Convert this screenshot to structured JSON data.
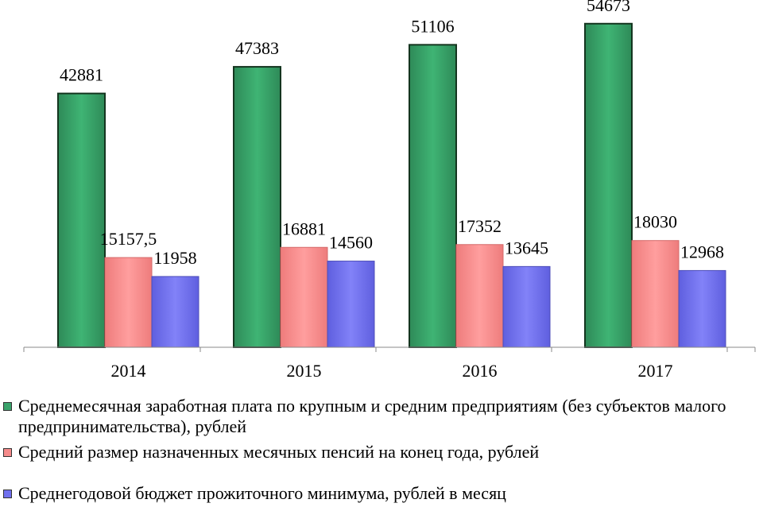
{
  "chart_data": {
    "type": "bar",
    "categories": [
      "2014",
      "2015",
      "2016",
      "2017"
    ],
    "series": [
      {
        "name": "Среднемесячная заработная плата по крупным и средним предприятиям (без субъектов малого предпринимательства), рублей",
        "values": [
          42881,
          47383,
          51106,
          54673
        ],
        "labels": [
          "42881",
          "47383",
          "51106",
          "54673"
        ],
        "color": "#3aa36b"
      },
      {
        "name": "Средний размер назначенных месячных пенсий на конец года, рублей",
        "values": [
          15157.5,
          16881,
          17352,
          18030
        ],
        "labels": [
          "15157,5",
          "16881",
          "17352",
          "18030"
        ],
        "color": "#f58b8b"
      },
      {
        "name": "Среднегодовой бюджет прожиточного минимума, рублей в месяц",
        "values": [
          11958,
          14560,
          13645,
          12968
        ],
        "labels": [
          "11958",
          "14560",
          "13645",
          "12968"
        ],
        "color": "#7070ee"
      }
    ],
    "ylim": [
      0,
      58000
    ],
    "grid": false,
    "legend_position": "bottom"
  }
}
